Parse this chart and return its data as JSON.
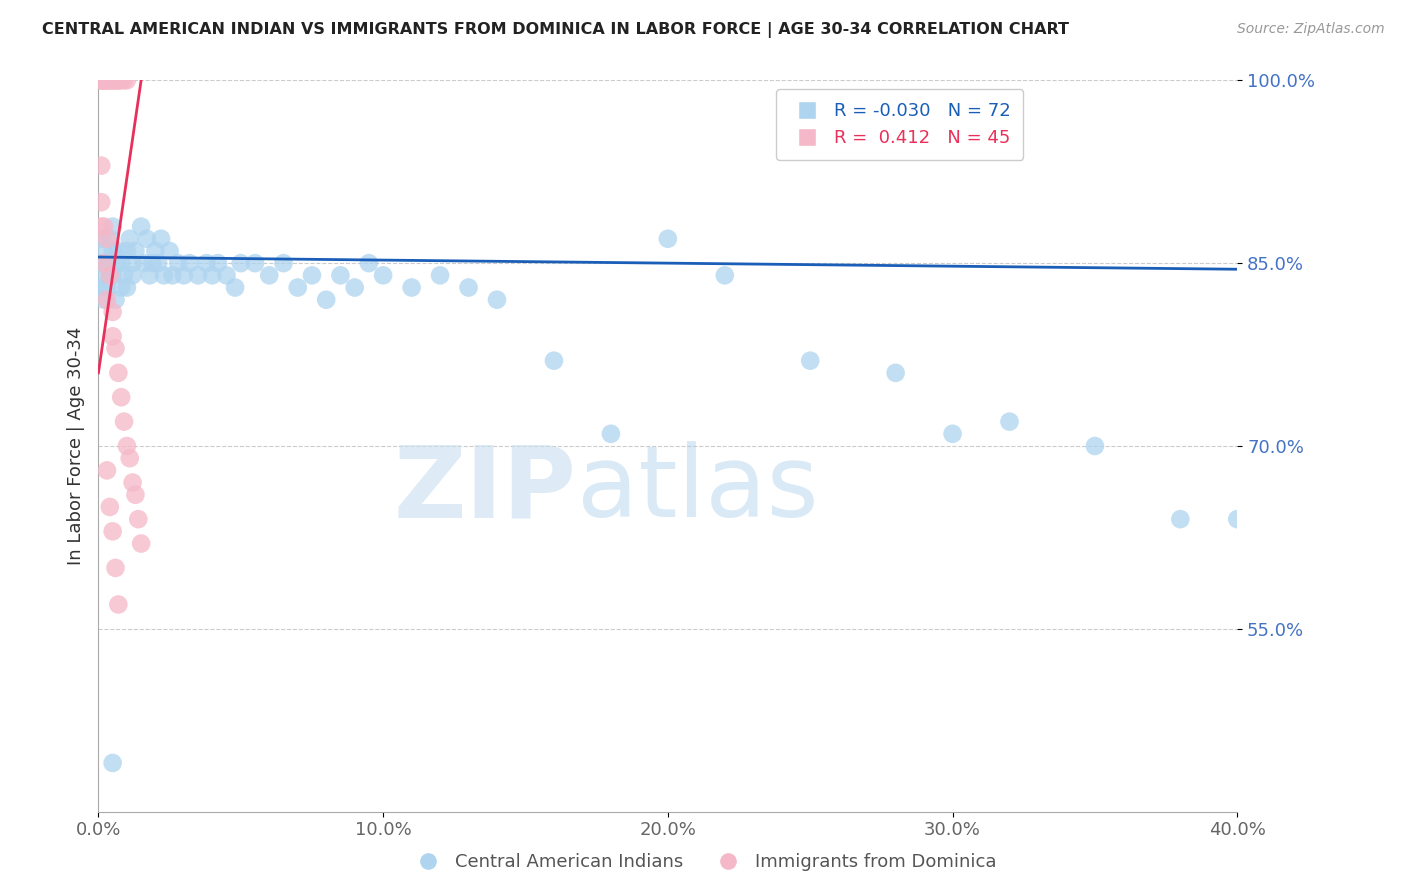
{
  "title": "CENTRAL AMERICAN INDIAN VS IMMIGRANTS FROM DOMINICA IN LABOR FORCE | AGE 30-34 CORRELATION CHART",
  "source": "Source: ZipAtlas.com",
  "ylabel": "In Labor Force | Age 30-34",
  "xlim": [
    0.0,
    0.4
  ],
  "ylim": [
    0.4,
    1.0
  ],
  "yticks": [
    0.55,
    0.7,
    0.85,
    1.0
  ],
  "xticks": [
    0.0,
    0.1,
    0.2,
    0.3,
    0.4
  ],
  "blue_R": -0.03,
  "blue_N": 72,
  "pink_R": 0.412,
  "pink_N": 45,
  "blue_color": "#aed4f0",
  "pink_color": "#f5b8c8",
  "trend_blue": "#1a5eb8",
  "trend_pink": "#e8305a",
  "watermark_zip": "ZIP",
  "watermark_atlas": "atlas",
  "legend_label_blue": "Central American Indians",
  "legend_label_pink": "Immigrants from Dominica",
  "blue_x": [
    0.001,
    0.001,
    0.001,
    0.002,
    0.002,
    0.002,
    0.003,
    0.003,
    0.004,
    0.004,
    0.005,
    0.005,
    0.005,
    0.006,
    0.006,
    0.007,
    0.008,
    0.008,
    0.009,
    0.01,
    0.01,
    0.011,
    0.012,
    0.012,
    0.013,
    0.015,
    0.016,
    0.017,
    0.018,
    0.019,
    0.02,
    0.021,
    0.022,
    0.023,
    0.025,
    0.026,
    0.028,
    0.03,
    0.032,
    0.035,
    0.038,
    0.04,
    0.042,
    0.045,
    0.048,
    0.05,
    0.055,
    0.06,
    0.065,
    0.07,
    0.075,
    0.08,
    0.085,
    0.09,
    0.095,
    0.1,
    0.11,
    0.12,
    0.13,
    0.14,
    0.16,
    0.18,
    0.2,
    0.22,
    0.25,
    0.28,
    0.3,
    0.32,
    0.35,
    0.38,
    0.4,
    0.005
  ],
  "blue_y": [
    0.87,
    0.85,
    0.83,
    0.86,
    0.84,
    0.82,
    0.85,
    0.83,
    0.87,
    0.84,
    0.88,
    0.86,
    0.84,
    0.85,
    0.82,
    0.86,
    0.85,
    0.83,
    0.84,
    0.86,
    0.83,
    0.87,
    0.85,
    0.84,
    0.86,
    0.88,
    0.85,
    0.87,
    0.84,
    0.85,
    0.86,
    0.85,
    0.87,
    0.84,
    0.86,
    0.84,
    0.85,
    0.84,
    0.85,
    0.84,
    0.85,
    0.84,
    0.85,
    0.84,
    0.83,
    0.85,
    0.85,
    0.84,
    0.85,
    0.83,
    0.84,
    0.82,
    0.84,
    0.83,
    0.85,
    0.84,
    0.83,
    0.84,
    0.83,
    0.82,
    0.77,
    0.71,
    0.87,
    0.84,
    0.77,
    0.76,
    0.71,
    0.72,
    0.7,
    0.64,
    0.64,
    0.44
  ],
  "pink_x": [
    0.001,
    0.001,
    0.001,
    0.002,
    0.002,
    0.002,
    0.003,
    0.003,
    0.003,
    0.004,
    0.004,
    0.005,
    0.005,
    0.006,
    0.006,
    0.007,
    0.007,
    0.008,
    0.009,
    0.01,
    0.001,
    0.001,
    0.001,
    0.002,
    0.002,
    0.003,
    0.003,
    0.004,
    0.005,
    0.005,
    0.006,
    0.007,
    0.008,
    0.009,
    0.01,
    0.011,
    0.012,
    0.013,
    0.014,
    0.015,
    0.003,
    0.004,
    0.005,
    0.006,
    0.007
  ],
  "pink_y": [
    1.0,
    1.0,
    1.0,
    1.0,
    1.0,
    1.0,
    1.0,
    1.0,
    1.0,
    1.0,
    1.0,
    1.0,
    1.0,
    1.0,
    1.0,
    1.0,
    1.0,
    1.0,
    1.0,
    1.0,
    0.93,
    0.9,
    0.88,
    0.88,
    0.85,
    0.87,
    0.82,
    0.84,
    0.81,
    0.79,
    0.78,
    0.76,
    0.74,
    0.72,
    0.7,
    0.69,
    0.67,
    0.66,
    0.64,
    0.62,
    0.68,
    0.65,
    0.63,
    0.6,
    0.57
  ],
  "blue_trend_x0": 0.0,
  "blue_trend_x1": 0.4,
  "blue_trend_y0": 0.855,
  "blue_trend_y1": 0.845,
  "pink_trend_x0": 0.0,
  "pink_trend_x1": 0.015,
  "pink_trend_y0": 0.76,
  "pink_trend_y1": 1.0
}
